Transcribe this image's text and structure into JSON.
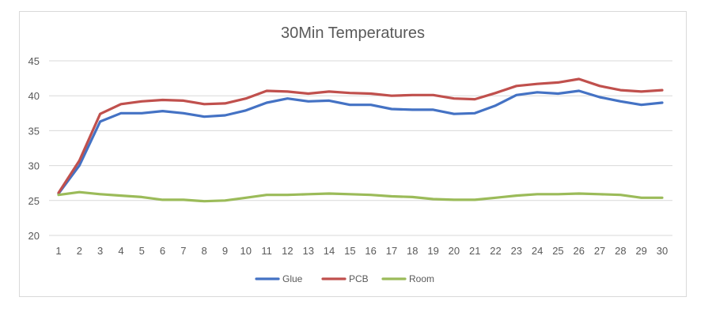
{
  "chart_data": {
    "type": "line",
    "title": "30Min Temperatures",
    "xlabel": "",
    "ylabel": "",
    "categories": [
      "1",
      "2",
      "3",
      "4",
      "5",
      "6",
      "7",
      "8",
      "9",
      "10",
      "11",
      "12",
      "13",
      "14",
      "15",
      "16",
      "17",
      "18",
      "19",
      "20",
      "21",
      "22",
      "23",
      "24",
      "25",
      "26",
      "27",
      "28",
      "29",
      "30"
    ],
    "ylim": [
      20,
      45
    ],
    "yticks": [
      "20",
      "25",
      "30",
      "35",
      "40",
      "45"
    ],
    "grid": true,
    "legend_position": "bottom",
    "series": [
      {
        "name": "Glue",
        "color": "#4472c4",
        "values": [
          26.0,
          30.0,
          36.3,
          37.5,
          37.5,
          37.8,
          37.5,
          37.0,
          37.2,
          37.9,
          39.0,
          39.6,
          39.2,
          39.3,
          38.7,
          38.7,
          38.1,
          38.0,
          38.0,
          37.4,
          37.5,
          38.6,
          40.1,
          40.5,
          40.3,
          40.7,
          39.8,
          39.2,
          38.7,
          39.0
        ]
      },
      {
        "name": "PCB",
        "color": "#c0504d",
        "values": [
          26.1,
          30.7,
          37.4,
          38.8,
          39.2,
          39.4,
          39.3,
          38.8,
          38.9,
          39.6,
          40.7,
          40.6,
          40.3,
          40.6,
          40.4,
          40.3,
          40.0,
          40.1,
          40.1,
          39.6,
          39.5,
          40.4,
          41.4,
          41.7,
          41.9,
          42.4,
          41.4,
          40.8,
          40.6,
          40.8
        ]
      },
      {
        "name": "Room",
        "color": "#9bbb59",
        "values": [
          25.8,
          26.2,
          25.9,
          25.7,
          25.5,
          25.1,
          25.1,
          24.9,
          25.0,
          25.4,
          25.8,
          25.8,
          25.9,
          26.0,
          25.9,
          25.8,
          25.6,
          25.5,
          25.2,
          25.1,
          25.1,
          25.4,
          25.7,
          25.9,
          25.9,
          26.0,
          25.9,
          25.8,
          25.4,
          25.4
        ]
      }
    ]
  }
}
